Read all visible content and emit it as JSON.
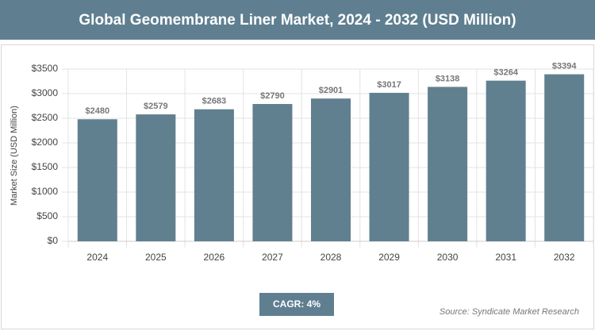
{
  "chart_data": {
    "type": "bar",
    "title": "Global Geomembrane Liner Market, 2024 - 2032 (USD Million)",
    "y_label": "Market Size (USD Million)",
    "categories": [
      "2024",
      "2025",
      "2026",
      "2027",
      "2028",
      "2029",
      "2030",
      "2031",
      "2032"
    ],
    "values": [
      2480,
      2579,
      2683,
      2790,
      2901,
      3017,
      3138,
      3264,
      3394
    ],
    "value_labels": [
      "$2480",
      "$2579",
      "$2683",
      "$2790",
      "$2901",
      "$3017",
      "$3138",
      "$3264",
      "$3394"
    ],
    "color": "#61808f",
    "ylim": [
      0,
      3500
    ],
    "yticks": [
      {
        "value": 0,
        "label": "$0"
      },
      {
        "value": 500,
        "label": "$500"
      },
      {
        "value": 1000,
        "label": "$1000"
      },
      {
        "value": 1500,
        "label": "$1500"
      },
      {
        "value": 2000,
        "label": "$2000"
      },
      {
        "value": 2500,
        "label": "$2500"
      },
      {
        "value": 3000,
        "label": "$3000"
      },
      {
        "value": 3500,
        "label": "$3500"
      }
    ],
    "grid": true,
    "annotation": "CAGR: 4%",
    "source": "Source: Syndicate Market Research"
  }
}
